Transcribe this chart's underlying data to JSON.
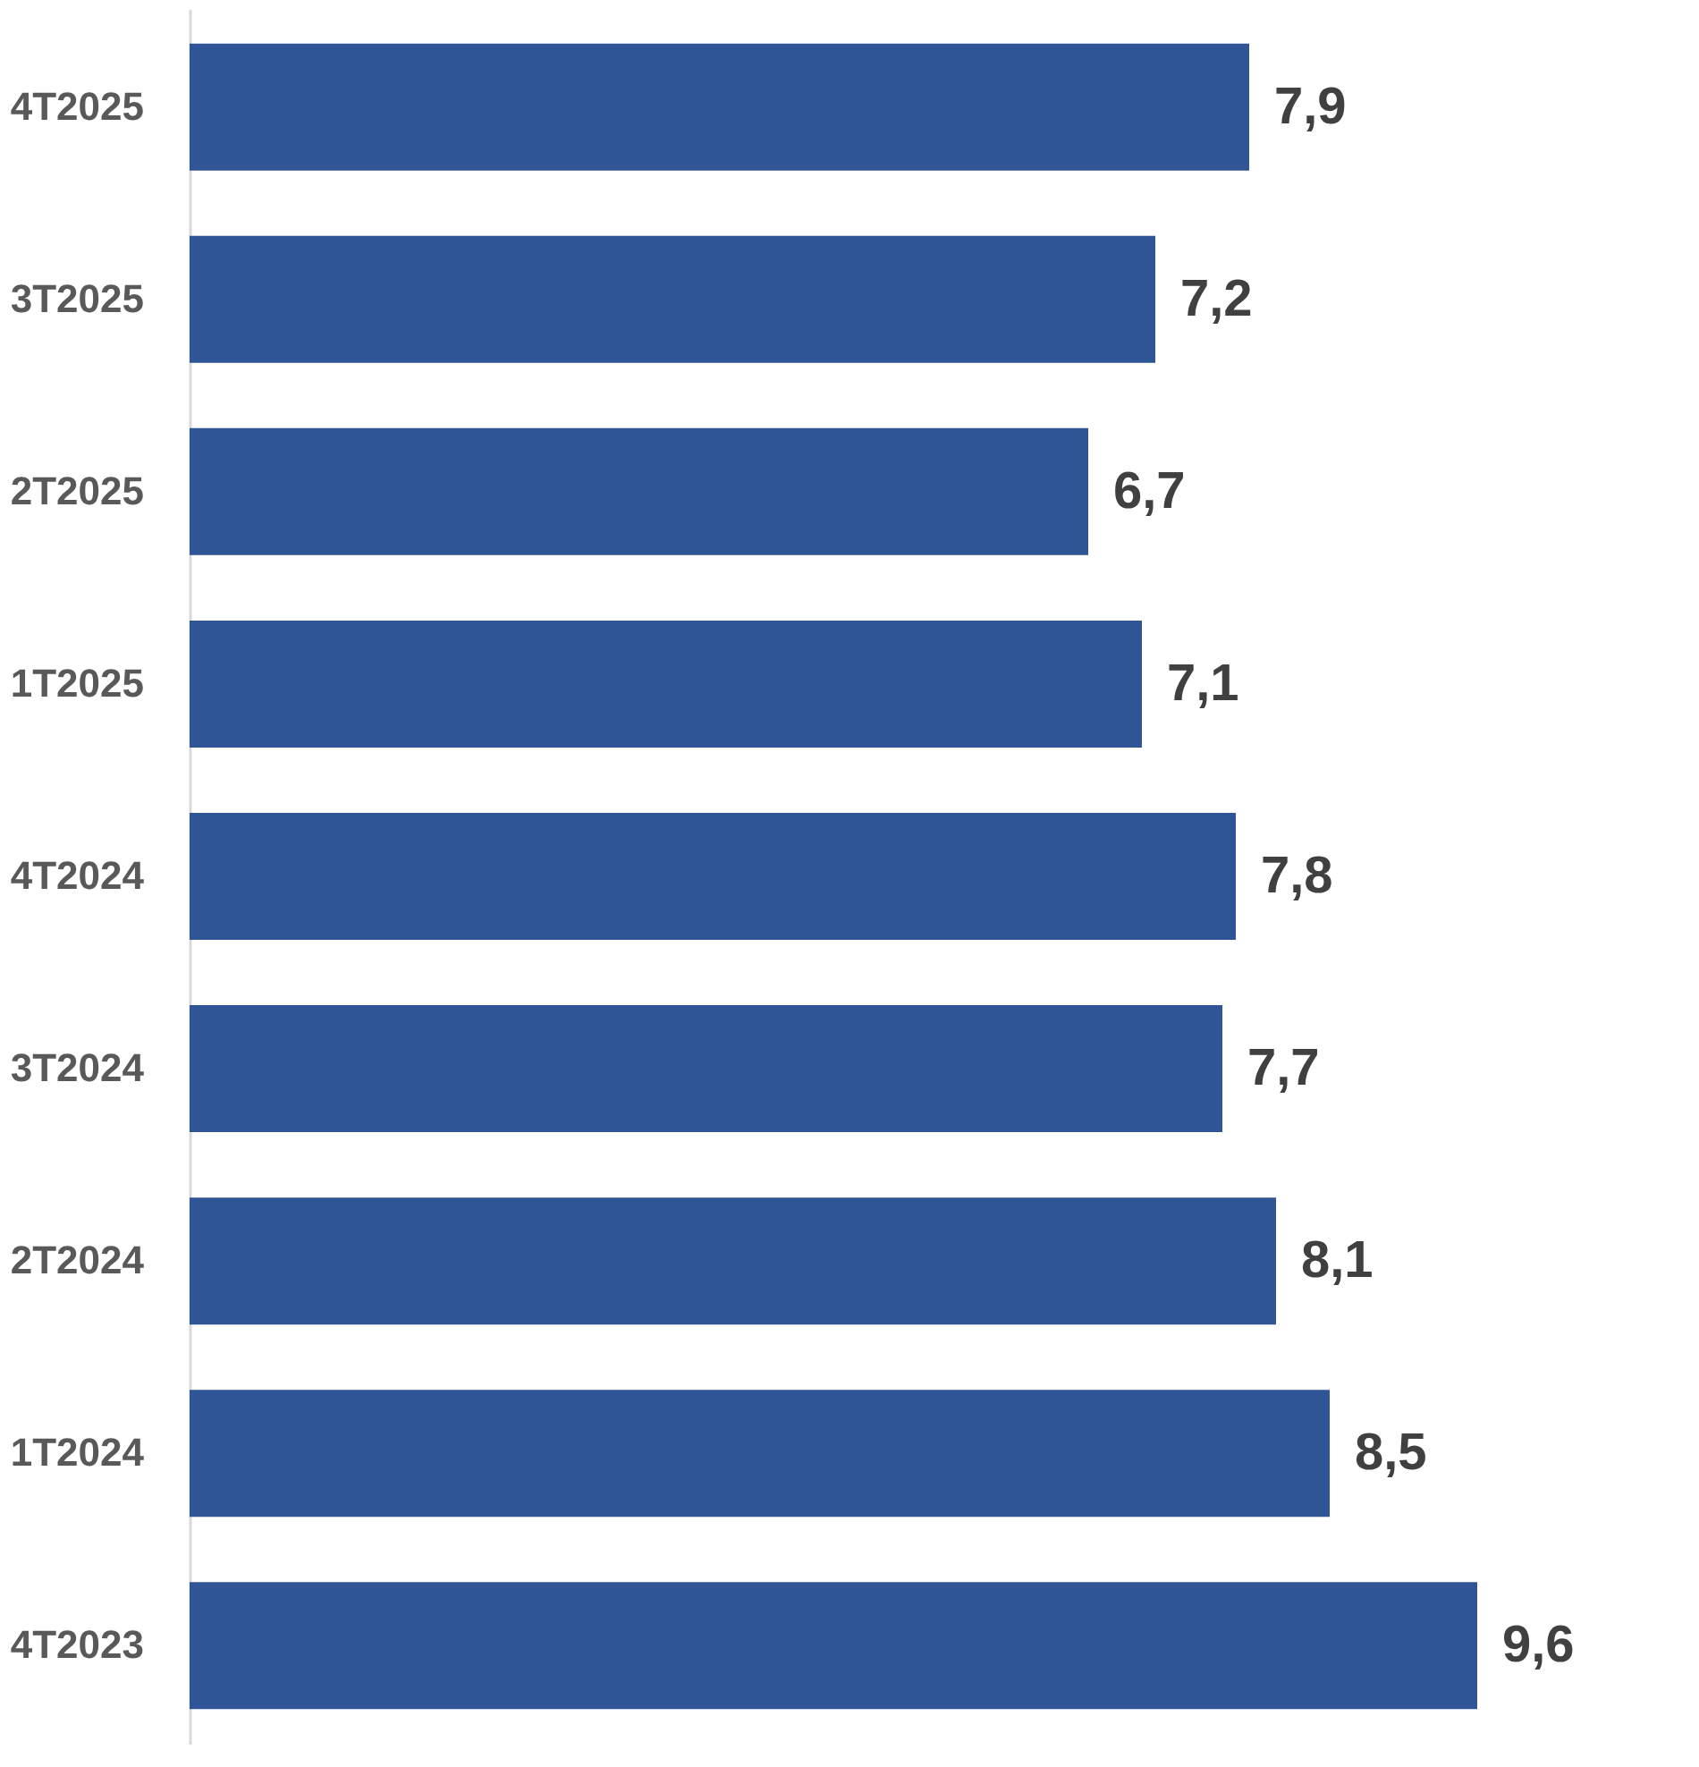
{
  "chart_data": {
    "type": "bar",
    "orientation": "horizontal",
    "categories": [
      "4T2025",
      "3T2025",
      "2T2025",
      "1T2025",
      "4T2024",
      "3T2024",
      "2T2024",
      "1T2024",
      "4T2023"
    ],
    "values": [
      7.9,
      7.2,
      6.7,
      7.1,
      7.8,
      7.7,
      8.1,
      8.5,
      9.6
    ],
    "value_labels": [
      "7,9",
      "7,2",
      "6,7",
      "7,1",
      "7,8",
      "7,7",
      "8,1",
      "8,5",
      "9,6"
    ],
    "color": "#2f5597",
    "tick_labels": "y"
  }
}
